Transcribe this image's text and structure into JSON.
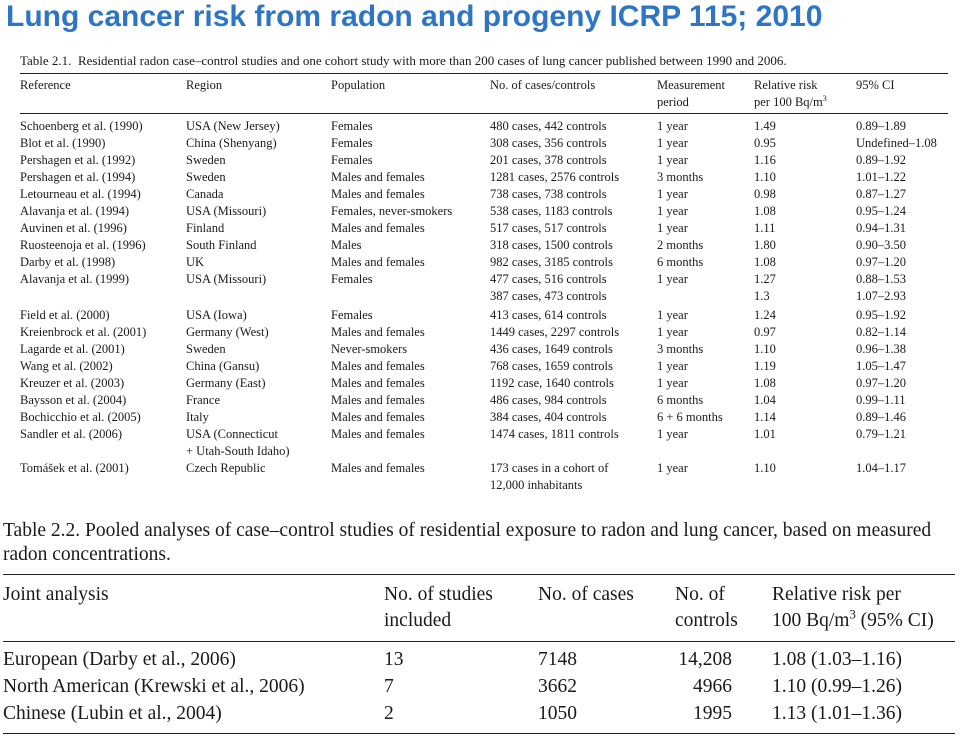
{
  "title": "Lung cancer risk from radon and progeny ICRP 115; 2010",
  "table1": {
    "caption_label": "Table 2.1.",
    "caption_text": "Residential radon case–control studies and one cohort study with more than 200 cases of lung cancer published between 1990 and 2006.",
    "headers": {
      "reference": "Reference",
      "region": "Region",
      "population": "Population",
      "cases": "No. of cases/controls",
      "period_line1": "Measurement",
      "period_line2": "period",
      "rr_line1": "Relative risk",
      "rr_line2": "per 100 Bq/m",
      "rr_sup": "3",
      "ci": "95% CI"
    },
    "rows": [
      {
        "ref": "Schoenberg et al. (1990)",
        "region": "USA (New Jersey)",
        "pop": "Females",
        "cases": "480 cases, 442 controls",
        "period": "1 year",
        "rr": "1.49",
        "ci": "0.89–1.89"
      },
      {
        "ref": "Blot et al. (1990)",
        "region": "China (Shenyang)",
        "pop": "Females",
        "cases": "308 cases, 356 controls",
        "period": "1 year",
        "rr": "0.95",
        "ci": "Undefined–1.08"
      },
      {
        "ref": "Pershagen et al. (1992)",
        "region": "Sweden",
        "pop": "Females",
        "cases": "201 cases, 378 controls",
        "period": "1 year",
        "rr": "1.16",
        "ci": "0.89–1.92"
      },
      {
        "ref": "Pershagen et al. (1994)",
        "region": "Sweden",
        "pop": "Males and females",
        "cases": "1281 cases, 2576 controls",
        "period": "3 months",
        "rr": "1.10",
        "ci": "1.01–1.22"
      },
      {
        "ref": "Letourneau et al. (1994)",
        "region": "Canada",
        "pop": "Males and females",
        "cases": "738 cases, 738 controls",
        "period": "1 year",
        "rr": "0.98",
        "ci": "0.87–1.27"
      },
      {
        "ref": "Alavanja et al. (1994)",
        "region": "USA (Missouri)",
        "pop": "Females, never-smokers",
        "cases": "538 cases, 1183 controls",
        "period": "1 year",
        "rr": "1.08",
        "ci": "0.95–1.24"
      },
      {
        "ref": "Auvinen et al. (1996)",
        "region": "Finland",
        "pop": "Males and females",
        "cases": "517 cases, 517 controls",
        "period": "1 year",
        "rr": "1.11",
        "ci": "0.94–1.31"
      },
      {
        "ref": "Ruosteenoja et al. (1996)",
        "region": "South Finland",
        "pop": "Males",
        "cases": "318 cases, 1500 controls",
        "period": "2 months",
        "rr": "1.80",
        "ci": "0.90–3.50"
      },
      {
        "ref": "Darby et al. (1998)",
        "region": "UK",
        "pop": "Males and females",
        "cases": "982 cases, 3185 controls",
        "period": "6 months",
        "rr": "1.08",
        "ci": "0.97–1.20"
      },
      {
        "ref": "Alavanja et al. (1999)",
        "region": "USA (Missouri)",
        "pop": "Females",
        "cases": "477 cases, 516 controls",
        "period": "1 year",
        "rr": "1.27",
        "ci": "0.88–1.53"
      },
      {
        "ref": "",
        "region": "",
        "pop": "",
        "cases": "387 cases, 473 controls",
        "period": "",
        "rr": "1.3",
        "ci": "1.07–2.93"
      },
      {
        "ref": "Field et al. (2000)",
        "region": "USA (Iowa)",
        "pop": "Females",
        "cases": "413 cases, 614 controls",
        "period": "1 year",
        "rr": "1.24",
        "ci": "0.95–1.92"
      },
      {
        "ref": "Kreienbrock et al. (2001)",
        "region": "Germany (West)",
        "pop": "Males and females",
        "cases": "1449 cases, 2297 controls",
        "period": "1 year",
        "rr": "0.97",
        "ci": "0.82–1.14"
      },
      {
        "ref": "Lagarde et al. (2001)",
        "region": "Sweden",
        "pop": "Never-smokers",
        "cases": "436 cases, 1649 controls",
        "period": "3 months",
        "rr": "1.10",
        "ci": "0.96–1.38"
      },
      {
        "ref": "Wang et al. (2002)",
        "region": "China (Gansu)",
        "pop": "Males and females",
        "cases": "768 cases, 1659 controls",
        "period": "1 year",
        "rr": "1.19",
        "ci": "1.05–1.47"
      },
      {
        "ref": "Kreuzer et al. (2003)",
        "region": "Germany (East)",
        "pop": "Males and females",
        "cases": "1192 case, 1640 controls",
        "period": "1 year",
        "rr": "1.08",
        "ci": "0.97–1.20"
      },
      {
        "ref": "Baysson et al. (2004)",
        "region": "France",
        "pop": "Males and females",
        "cases": "486 cases, 984 controls",
        "period": "6 months",
        "rr": "1.04",
        "ci": "0.99–1.11"
      },
      {
        "ref": "Bochicchio et al. (2005)",
        "region": "Italy",
        "pop": "Males and females",
        "cases": "384 cases, 404 controls",
        "period": "6 + 6 months",
        "rr": "1.14",
        "ci": "0.89–1.46"
      },
      {
        "ref": "Sandler et al. (2006)",
        "region": "USA (Connecticut",
        "region2": "+ Utah-South Idaho)",
        "pop": "Males and females",
        "cases": "1474 cases, 1811 controls",
        "period": "1 year",
        "rr": "1.01",
        "ci": "0.79–1.21"
      },
      {
        "ref": "Tomášek et al. (2001)",
        "region": "Czech Republic",
        "pop": "Males and females",
        "cases": "173 cases in a cohort of",
        "cases2": "12,000 inhabitants",
        "period": "1 year",
        "rr": "1.10",
        "ci": "1.04–1.17"
      }
    ]
  },
  "table2": {
    "caption": "Table 2.2.  Pooled analyses of case–control studies of residential exposure to radon and lung cancer, based on measured radon concentrations.",
    "headers": {
      "joint": "Joint analysis",
      "studies_line1": "No. of studies",
      "studies_line2": "included",
      "cases": "No. of cases",
      "controls_line1": "No. of",
      "controls_line2": "controls",
      "rr_line1": "Relative risk per",
      "rr_line2": "100 Bq/m",
      "rr_sup": "3",
      "rr_suffix": " (95% CI)"
    },
    "rows": [
      {
        "name": "European (Darby et al., 2006)",
        "studies": "13",
        "cases": "7148",
        "controls": "14,208",
        "rr": "1.08 (1.03–1.16)"
      },
      {
        "name": "North American (Krewski et al., 2006)",
        "studies": "7",
        "cases": "3662",
        "controls": "4966",
        "rr": "1.10 (0.99–1.26)"
      },
      {
        "name": "Chinese (Lubin et al., 2004)",
        "studies": "2",
        "cases": "1050",
        "controls": "1995",
        "rr": "1.13 (1.01–1.36)"
      }
    ]
  }
}
